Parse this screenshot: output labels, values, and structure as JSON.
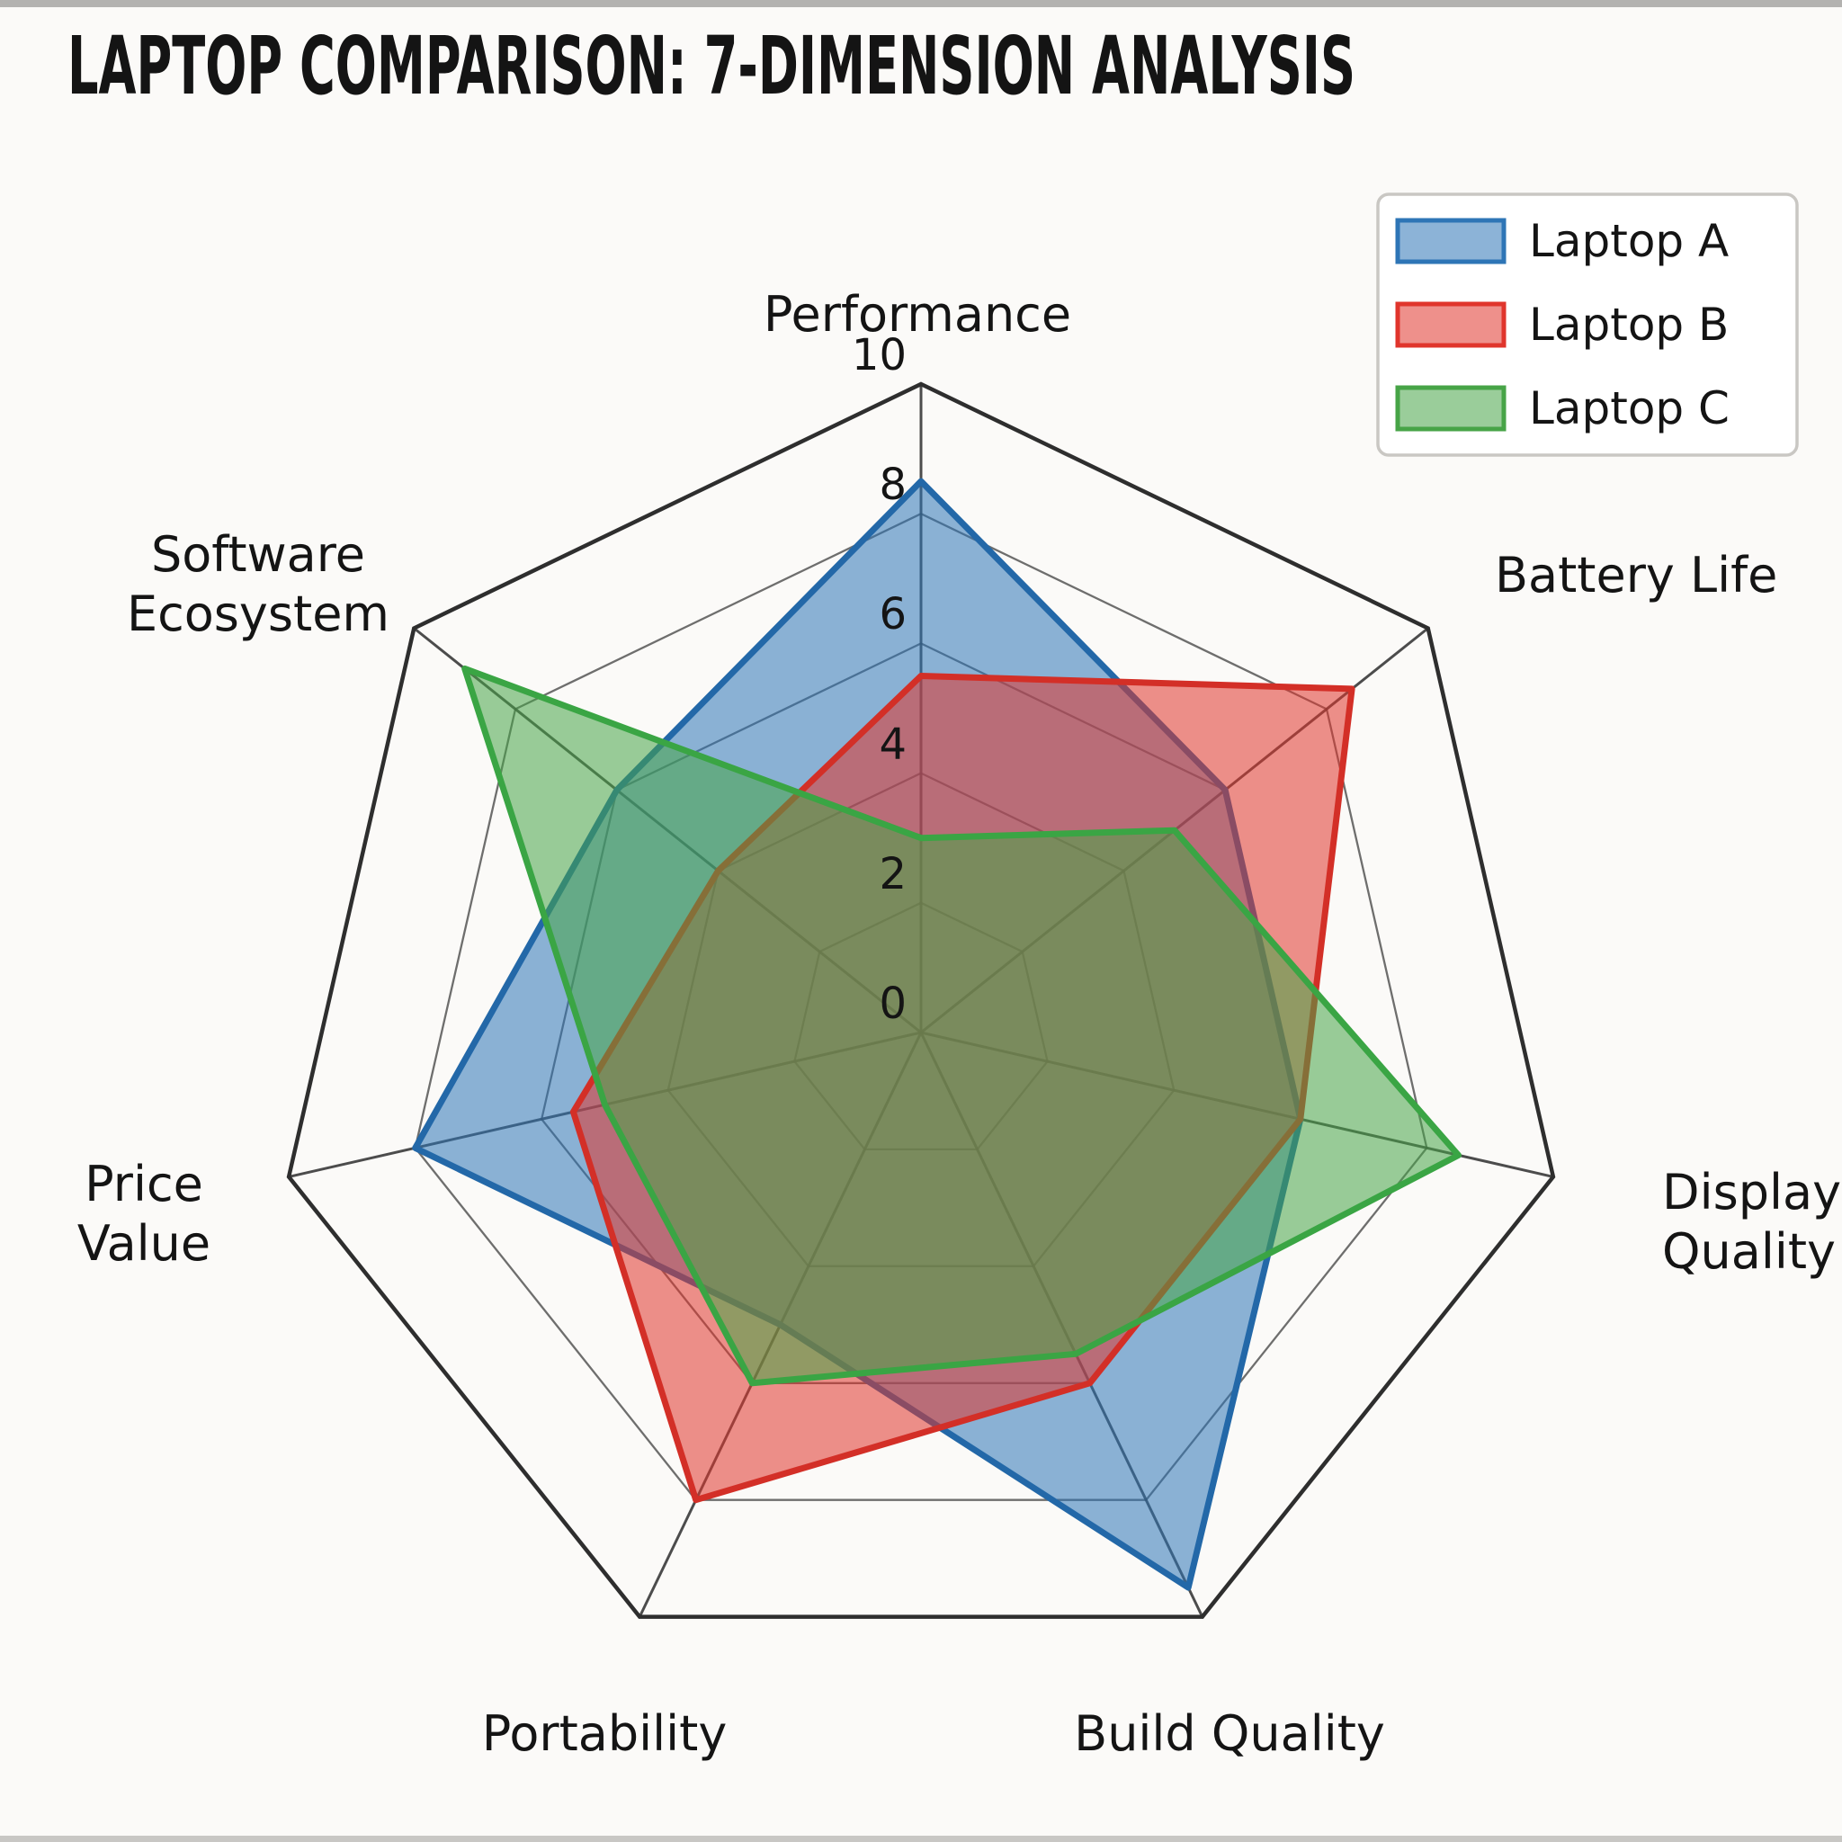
{
  "title": "LAPTOP COMPARISON: 7-DIMENSION ANALYSIS",
  "legend": {
    "position": "upper-right",
    "items": [
      {
        "label": "Laptop A",
        "color": "#2e75b6"
      },
      {
        "label": "Laptop B",
        "color": "#e0352c"
      },
      {
        "label": "Laptop C",
        "color": "#47a447"
      }
    ]
  },
  "chart_data": {
    "type": "radar",
    "title": "LAPTOP COMPARISON: 7-DIMENSION ANALYSIS",
    "categories": [
      {
        "label": "Performance",
        "lines": [
          "Performance"
        ]
      },
      {
        "label": "Battery Life",
        "lines": [
          "Battery Life"
        ]
      },
      {
        "label": "Display Quality",
        "lines": [
          "Display",
          "Quality"
        ]
      },
      {
        "label": "Build Quality",
        "lines": [
          "Build Quality"
        ]
      },
      {
        "label": "Portability",
        "lines": [
          "Portability"
        ]
      },
      {
        "label": "Price Value",
        "lines": [
          "Price",
          "Value"
        ]
      },
      {
        "label": "Software Ecosystem",
        "lines": [
          "Software",
          "Ecosystem"
        ]
      }
    ],
    "series": [
      {
        "name": "Laptop A",
        "color": "#2e75b6",
        "stroke": "#2368a8",
        "values": [
          8.5,
          6,
          6,
          9.5,
          5,
          8,
          6
        ]
      },
      {
        "name": "Laptop B",
        "color": "#e0352c",
        "stroke": "#d32f27",
        "values": [
          5.5,
          8.5,
          6,
          6,
          8,
          5.5,
          4
        ]
      },
      {
        "name": "Laptop C",
        "color": "#47a447",
        "stroke": "#3aa544",
        "values": [
          3,
          5,
          8.5,
          5.5,
          6,
          5,
          9
        ]
      }
    ],
    "r_ticks": [
      "0",
      "2",
      "4",
      "6",
      "8",
      "10"
    ],
    "r_tick_values": [
      0,
      2,
      4,
      6,
      8,
      10
    ],
    "r_max": 10,
    "grid": true,
    "legend_position": "upper right",
    "fill_opacity": 0.55
  },
  "colors": {
    "background": "#fbfaf8",
    "outer_ring": "#2e2e2e",
    "inner_ring": "#555555",
    "spoke": "#3a3a3a",
    "text": "#141414",
    "legend_border": "#c9c7c3",
    "legend_bg": "#ffffff"
  }
}
